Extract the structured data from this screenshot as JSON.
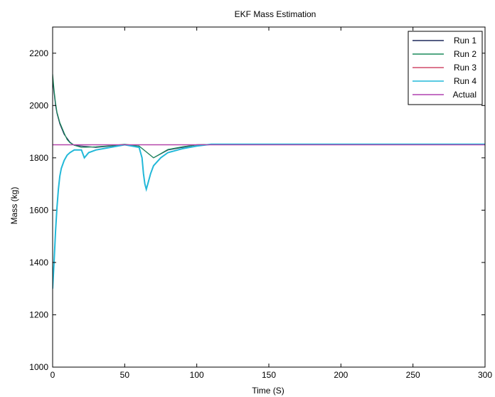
{
  "chart_data": {
    "type": "line",
    "title": "EKF Mass Estimation",
    "xlabel": "Time (S)",
    "ylabel": "Mass (kg)",
    "xlim": [
      0,
      300
    ],
    "ylim": [
      1000,
      2300
    ],
    "xticks": [
      0,
      50,
      100,
      150,
      200,
      250,
      300
    ],
    "yticks": [
      1000,
      1200,
      1400,
      1600,
      1800,
      2000,
      2200
    ],
    "grid": false,
    "legend_position": "top-right",
    "series": [
      {
        "name": "Run 1",
        "color": "#1f2a5c",
        "x": [
          0,
          1,
          2,
          3,
          5,
          8,
          10,
          12,
          15,
          20,
          30,
          40,
          50,
          60,
          70,
          80,
          90,
          100,
          120,
          150,
          200,
          250,
          300
        ],
        "y": [
          2100,
          2050,
          2000,
          1970,
          1930,
          1890,
          1875,
          1860,
          1848,
          1845,
          1840,
          1845,
          1850,
          1845,
          1800,
          1830,
          1840,
          1850,
          1852,
          1852,
          1852,
          1852,
          1852
        ]
      },
      {
        "name": "Run 2",
        "color": "#1a8a5a",
        "x": [
          0,
          1,
          2,
          3,
          5,
          8,
          10,
          12,
          15,
          20,
          30,
          40,
          50,
          60,
          70,
          80,
          90,
          100,
          120,
          150,
          200,
          250,
          300
        ],
        "y": [
          2120,
          2060,
          2010,
          1975,
          1935,
          1895,
          1870,
          1858,
          1848,
          1840,
          1842,
          1846,
          1852,
          1845,
          1800,
          1832,
          1842,
          1850,
          1852,
          1852,
          1852,
          1852,
          1852
        ]
      },
      {
        "name": "Run 3",
        "color": "#d04a6a",
        "x": [
          0,
          300
        ],
        "y": [
          1850,
          1850
        ]
      },
      {
        "name": "Run 4",
        "color": "#22b8d8",
        "x": [
          0,
          1,
          2,
          3,
          4,
          5,
          6,
          8,
          10,
          12,
          15,
          20,
          22,
          25,
          30,
          40,
          50,
          55,
          60,
          62,
          63,
          64,
          65,
          66,
          68,
          70,
          75,
          80,
          90,
          100,
          110,
          120,
          150,
          200,
          250,
          300
        ],
        "y": [
          1300,
          1400,
          1520,
          1610,
          1680,
          1730,
          1760,
          1790,
          1810,
          1820,
          1830,
          1830,
          1800,
          1820,
          1830,
          1840,
          1850,
          1845,
          1840,
          1800,
          1740,
          1700,
          1680,
          1700,
          1740,
          1770,
          1800,
          1820,
          1835,
          1845,
          1852,
          1852,
          1852,
          1852,
          1852,
          1852
        ]
      },
      {
        "name": "Actual",
        "color": "#b040b0",
        "x": [
          0,
          300
        ],
        "y": [
          1850,
          1850
        ]
      }
    ]
  }
}
